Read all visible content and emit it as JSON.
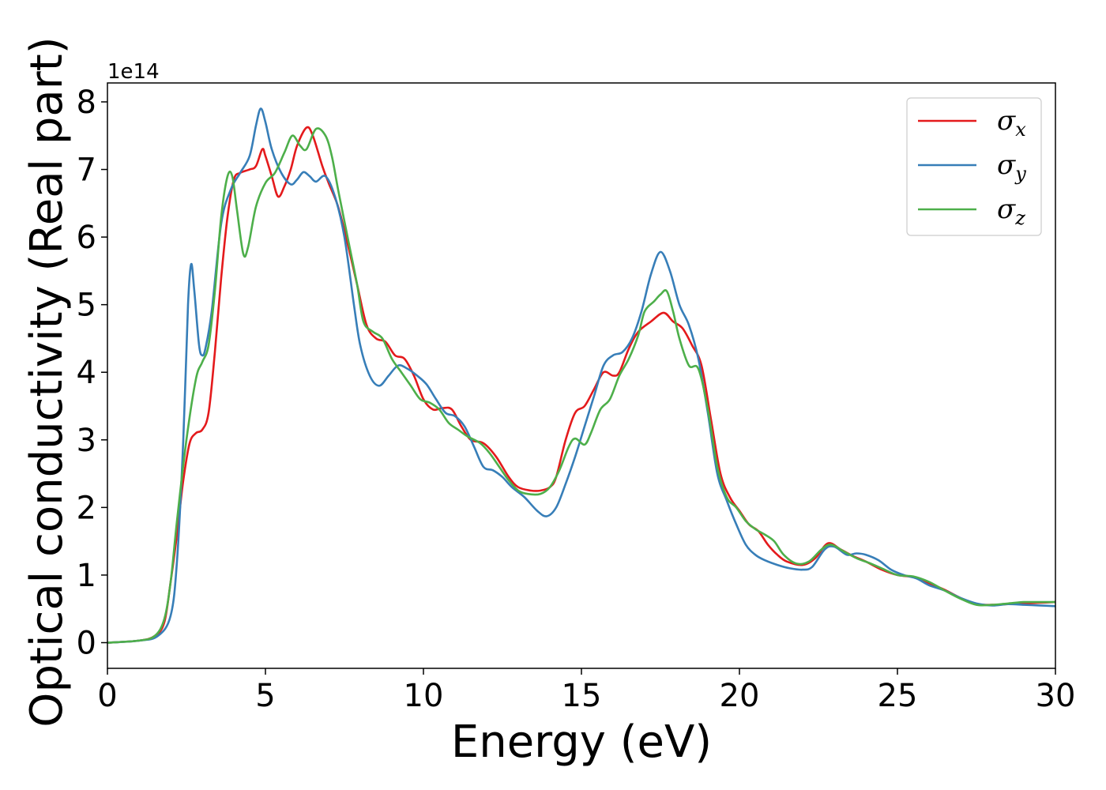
{
  "chart_data": {
    "type": "line",
    "xlabel": "Energy (eV)",
    "ylabel": "Optical conductivity (Real part)",
    "y_offset_text": "1e14",
    "xlim": [
      0,
      30
    ],
    "ylim": [
      -0.38,
      8.28
    ],
    "x_ticks": [
      0,
      5,
      10,
      15,
      20,
      25,
      30
    ],
    "y_ticks": [
      0,
      1,
      2,
      3,
      4,
      5,
      6,
      7,
      8
    ],
    "grid": false,
    "legend_placement": "top-right",
    "series": [
      {
        "name": "σx",
        "symbol": "σ",
        "subscript": "x",
        "color": "#e41a1c",
        "points": [
          [
            0,
            0
          ],
          [
            1,
            0.03
          ],
          [
            1.5,
            0.1
          ],
          [
            1.8,
            0.3
          ],
          [
            2.0,
            0.9
          ],
          [
            2.2,
            1.6
          ],
          [
            2.4,
            2.4
          ],
          [
            2.6,
            2.95
          ],
          [
            2.8,
            3.1
          ],
          [
            3.0,
            3.15
          ],
          [
            3.2,
            3.4
          ],
          [
            3.4,
            4.3
          ],
          [
            3.6,
            5.4
          ],
          [
            3.8,
            6.3
          ],
          [
            4.0,
            6.85
          ],
          [
            4.2,
            6.95
          ],
          [
            4.5,
            7.0
          ],
          [
            4.7,
            7.05
          ],
          [
            4.9,
            7.3
          ],
          [
            5.0,
            7.2
          ],
          [
            5.2,
            6.9
          ],
          [
            5.4,
            6.6
          ],
          [
            5.6,
            6.75
          ],
          [
            5.8,
            7.0
          ],
          [
            6.0,
            7.35
          ],
          [
            6.3,
            7.62
          ],
          [
            6.5,
            7.5
          ],
          [
            6.8,
            7.05
          ],
          [
            7.0,
            6.8
          ],
          [
            7.3,
            6.45
          ],
          [
            7.6,
            5.9
          ],
          [
            7.9,
            5.3
          ],
          [
            8.2,
            4.7
          ],
          [
            8.5,
            4.5
          ],
          [
            8.8,
            4.45
          ],
          [
            9.1,
            4.25
          ],
          [
            9.4,
            4.2
          ],
          [
            9.7,
            3.95
          ],
          [
            10.0,
            3.6
          ],
          [
            10.3,
            3.45
          ],
          [
            10.6,
            3.47
          ],
          [
            10.9,
            3.45
          ],
          [
            11.2,
            3.2
          ],
          [
            11.5,
            3.0
          ],
          [
            11.9,
            2.95
          ],
          [
            12.3,
            2.75
          ],
          [
            12.7,
            2.45
          ],
          [
            13.0,
            2.3
          ],
          [
            13.4,
            2.25
          ],
          [
            13.7,
            2.25
          ],
          [
            14.0,
            2.3
          ],
          [
            14.2,
            2.45
          ],
          [
            14.5,
            3.0
          ],
          [
            14.8,
            3.4
          ],
          [
            15.1,
            3.5
          ],
          [
            15.4,
            3.75
          ],
          [
            15.7,
            4.0
          ],
          [
            16.0,
            3.95
          ],
          [
            16.2,
            4.0
          ],
          [
            16.5,
            4.35
          ],
          [
            16.8,
            4.6
          ],
          [
            17.2,
            4.75
          ],
          [
            17.6,
            4.88
          ],
          [
            17.9,
            4.75
          ],
          [
            18.2,
            4.65
          ],
          [
            18.5,
            4.4
          ],
          [
            18.8,
            4.1
          ],
          [
            19.1,
            3.3
          ],
          [
            19.4,
            2.5
          ],
          [
            19.7,
            2.15
          ],
          [
            20.0,
            1.95
          ],
          [
            20.3,
            1.75
          ],
          [
            20.6,
            1.65
          ],
          [
            20.9,
            1.45
          ],
          [
            21.2,
            1.3
          ],
          [
            21.5,
            1.2
          ],
          [
            22.0,
            1.15
          ],
          [
            22.4,
            1.25
          ],
          [
            22.8,
            1.47
          ],
          [
            23.2,
            1.38
          ],
          [
            23.6,
            1.28
          ],
          [
            24.0,
            1.2
          ],
          [
            24.5,
            1.08
          ],
          [
            25.0,
            1.0
          ],
          [
            25.5,
            0.97
          ],
          [
            26.0,
            0.88
          ],
          [
            26.5,
            0.78
          ],
          [
            27.0,
            0.66
          ],
          [
            27.5,
            0.57
          ],
          [
            28.0,
            0.56
          ],
          [
            28.5,
            0.57
          ],
          [
            29.0,
            0.58
          ],
          [
            29.5,
            0.59
          ],
          [
            30.0,
            0.6
          ]
        ]
      },
      {
        "name": "σy",
        "symbol": "σ",
        "subscript": "y",
        "color": "#377eb8",
        "points": [
          [
            0,
            0
          ],
          [
            1,
            0.03
          ],
          [
            1.6,
            0.1
          ],
          [
            2.0,
            0.4
          ],
          [
            2.2,
            1.2
          ],
          [
            2.4,
            3.0
          ],
          [
            2.55,
            5.0
          ],
          [
            2.65,
            5.6
          ],
          [
            2.75,
            5.2
          ],
          [
            2.9,
            4.4
          ],
          [
            3.0,
            4.25
          ],
          [
            3.1,
            4.35
          ],
          [
            3.3,
            4.9
          ],
          [
            3.6,
            6.2
          ],
          [
            3.9,
            6.7
          ],
          [
            4.2,
            6.95
          ],
          [
            4.5,
            7.2
          ],
          [
            4.7,
            7.65
          ],
          [
            4.85,
            7.9
          ],
          [
            5.0,
            7.7
          ],
          [
            5.2,
            7.3
          ],
          [
            5.5,
            6.95
          ],
          [
            5.8,
            6.78
          ],
          [
            6.0,
            6.85
          ],
          [
            6.2,
            6.96
          ],
          [
            6.4,
            6.9
          ],
          [
            6.6,
            6.82
          ],
          [
            6.9,
            6.9
          ],
          [
            7.2,
            6.6
          ],
          [
            7.5,
            6.0
          ],
          [
            7.8,
            5.0
          ],
          [
            8.0,
            4.4
          ],
          [
            8.3,
            3.95
          ],
          [
            8.6,
            3.8
          ],
          [
            8.9,
            3.95
          ],
          [
            9.2,
            4.1
          ],
          [
            9.5,
            4.05
          ],
          [
            9.8,
            3.95
          ],
          [
            10.1,
            3.82
          ],
          [
            10.4,
            3.6
          ],
          [
            10.7,
            3.4
          ],
          [
            11.0,
            3.35
          ],
          [
            11.3,
            3.2
          ],
          [
            11.6,
            2.9
          ],
          [
            11.9,
            2.6
          ],
          [
            12.2,
            2.55
          ],
          [
            12.5,
            2.45
          ],
          [
            12.8,
            2.3
          ],
          [
            13.2,
            2.15
          ],
          [
            13.6,
            1.95
          ],
          [
            13.9,
            1.87
          ],
          [
            14.2,
            2.0
          ],
          [
            14.5,
            2.35
          ],
          [
            14.8,
            2.75
          ],
          [
            15.1,
            3.2
          ],
          [
            15.4,
            3.65
          ],
          [
            15.7,
            4.1
          ],
          [
            16.0,
            4.25
          ],
          [
            16.3,
            4.3
          ],
          [
            16.6,
            4.5
          ],
          [
            16.9,
            4.9
          ],
          [
            17.2,
            5.45
          ],
          [
            17.5,
            5.78
          ],
          [
            17.8,
            5.5
          ],
          [
            18.1,
            5.0
          ],
          [
            18.4,
            4.7
          ],
          [
            18.7,
            4.2
          ],
          [
            19.0,
            3.4
          ],
          [
            19.3,
            2.5
          ],
          [
            19.6,
            2.1
          ],
          [
            19.9,
            1.75
          ],
          [
            20.2,
            1.45
          ],
          [
            20.5,
            1.3
          ],
          [
            20.8,
            1.22
          ],
          [
            21.2,
            1.15
          ],
          [
            21.6,
            1.1
          ],
          [
            22.0,
            1.08
          ],
          [
            22.3,
            1.12
          ],
          [
            22.7,
            1.38
          ],
          [
            23.0,
            1.42
          ],
          [
            23.4,
            1.3
          ],
          [
            23.7,
            1.32
          ],
          [
            24.0,
            1.3
          ],
          [
            24.4,
            1.22
          ],
          [
            24.8,
            1.08
          ],
          [
            25.2,
            1.0
          ],
          [
            25.6,
            0.95
          ],
          [
            26.0,
            0.85
          ],
          [
            26.5,
            0.77
          ],
          [
            27.0,
            0.66
          ],
          [
            27.5,
            0.58
          ],
          [
            28.0,
            0.55
          ],
          [
            28.5,
            0.57
          ],
          [
            29.0,
            0.56
          ],
          [
            29.5,
            0.55
          ],
          [
            30.0,
            0.54
          ]
        ]
      },
      {
        "name": "σz",
        "symbol": "σ",
        "subscript": "z",
        "color": "#4daf4a",
        "points": [
          [
            0,
            0
          ],
          [
            1,
            0.03
          ],
          [
            1.5,
            0.1
          ],
          [
            1.8,
            0.35
          ],
          [
            2.0,
            0.9
          ],
          [
            2.2,
            1.8
          ],
          [
            2.5,
            3.0
          ],
          [
            2.8,
            3.9
          ],
          [
            3.0,
            4.15
          ],
          [
            3.2,
            4.4
          ],
          [
            3.4,
            5.2
          ],
          [
            3.6,
            6.3
          ],
          [
            3.8,
            6.9
          ],
          [
            3.95,
            6.9
          ],
          [
            4.1,
            6.4
          ],
          [
            4.3,
            5.75
          ],
          [
            4.45,
            5.85
          ],
          [
            4.7,
            6.45
          ],
          [
            5.0,
            6.8
          ],
          [
            5.3,
            6.95
          ],
          [
            5.6,
            7.25
          ],
          [
            5.85,
            7.5
          ],
          [
            6.1,
            7.35
          ],
          [
            6.3,
            7.3
          ],
          [
            6.6,
            7.6
          ],
          [
            6.9,
            7.5
          ],
          [
            7.1,
            7.2
          ],
          [
            7.3,
            6.7
          ],
          [
            7.6,
            6.0
          ],
          [
            7.9,
            5.3
          ],
          [
            8.1,
            4.75
          ],
          [
            8.4,
            4.6
          ],
          [
            8.7,
            4.5
          ],
          [
            9.0,
            4.2
          ],
          [
            9.3,
            4.0
          ],
          [
            9.6,
            3.8
          ],
          [
            9.9,
            3.6
          ],
          [
            10.2,
            3.55
          ],
          [
            10.5,
            3.45
          ],
          [
            10.8,
            3.25
          ],
          [
            11.1,
            3.15
          ],
          [
            11.4,
            3.05
          ],
          [
            11.8,
            2.95
          ],
          [
            12.1,
            2.8
          ],
          [
            12.4,
            2.6
          ],
          [
            12.7,
            2.4
          ],
          [
            13.0,
            2.25
          ],
          [
            13.3,
            2.2
          ],
          [
            13.7,
            2.2
          ],
          [
            14.0,
            2.3
          ],
          [
            14.3,
            2.55
          ],
          [
            14.6,
            2.9
          ],
          [
            14.8,
            3.02
          ],
          [
            15.1,
            2.93
          ],
          [
            15.3,
            3.1
          ],
          [
            15.6,
            3.45
          ],
          [
            15.9,
            3.6
          ],
          [
            16.2,
            3.95
          ],
          [
            16.5,
            4.2
          ],
          [
            16.8,
            4.55
          ],
          [
            17.0,
            4.9
          ],
          [
            17.3,
            5.05
          ],
          [
            17.5,
            5.15
          ],
          [
            17.7,
            5.2
          ],
          [
            17.9,
            4.9
          ],
          [
            18.1,
            4.5
          ],
          [
            18.4,
            4.1
          ],
          [
            18.7,
            4.05
          ],
          [
            19.0,
            3.45
          ],
          [
            19.3,
            2.6
          ],
          [
            19.6,
            2.15
          ],
          [
            19.9,
            2.0
          ],
          [
            20.2,
            1.8
          ],
          [
            20.5,
            1.68
          ],
          [
            20.8,
            1.6
          ],
          [
            21.1,
            1.5
          ],
          [
            21.4,
            1.3
          ],
          [
            21.8,
            1.17
          ],
          [
            22.2,
            1.2
          ],
          [
            22.6,
            1.38
          ],
          [
            22.9,
            1.45
          ],
          [
            23.3,
            1.35
          ],
          [
            23.7,
            1.25
          ],
          [
            24.1,
            1.18
          ],
          [
            24.5,
            1.1
          ],
          [
            25.0,
            1.0
          ],
          [
            25.5,
            0.98
          ],
          [
            26.0,
            0.9
          ],
          [
            26.5,
            0.77
          ],
          [
            27.0,
            0.65
          ],
          [
            27.5,
            0.56
          ],
          [
            28.0,
            0.56
          ],
          [
            28.5,
            0.58
          ],
          [
            29.0,
            0.6
          ],
          [
            29.5,
            0.6
          ],
          [
            30.0,
            0.6
          ]
        ]
      }
    ]
  }
}
